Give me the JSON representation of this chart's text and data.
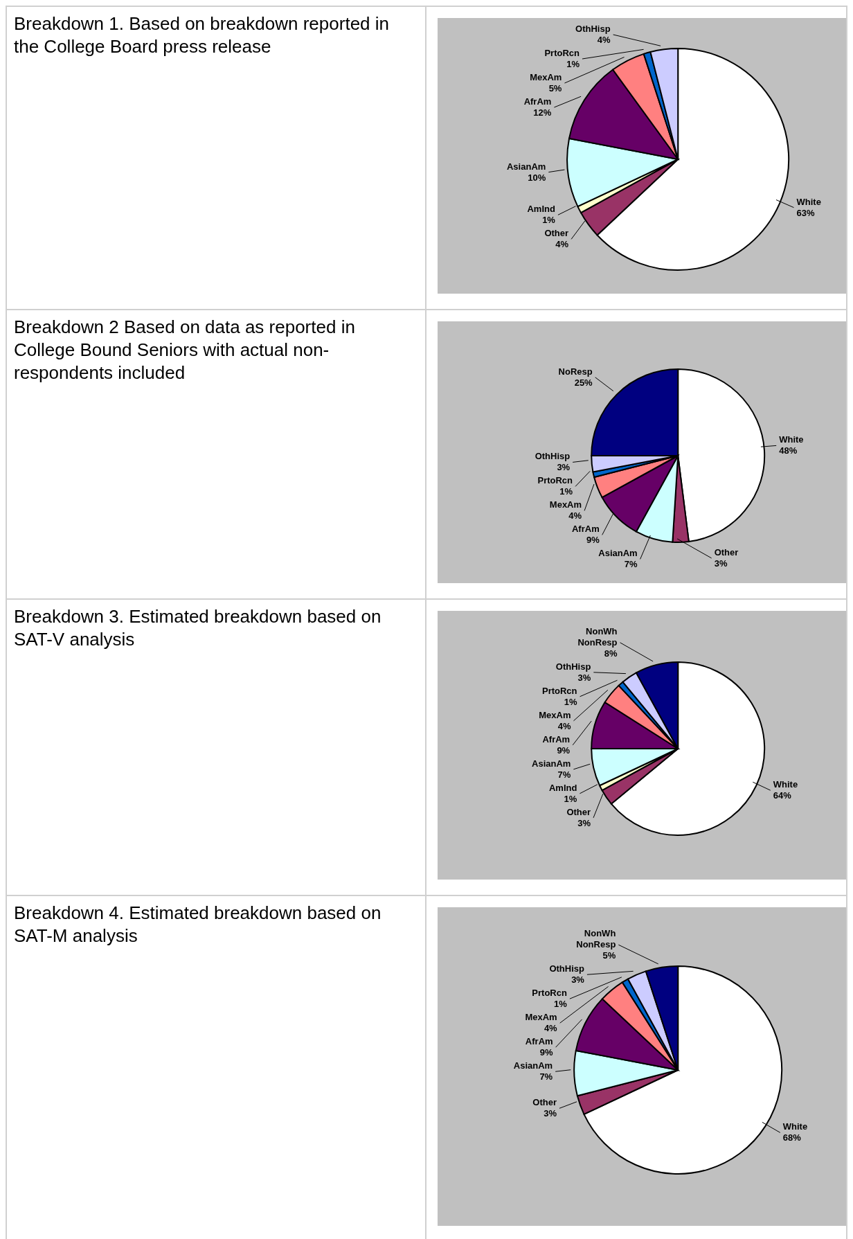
{
  "chart_data": [
    {
      "type": "pie",
      "title": "Breakdown 1. Based on breakdown reported in the College Board press release",
      "categories": [
        "White",
        "Other",
        "AmInd",
        "AsianAm",
        "AfrAm",
        "MexAm",
        "PrtoRcn",
        "OthHisp"
      ],
      "values": [
        63,
        4,
        1,
        10,
        12,
        5,
        1,
        4
      ],
      "value_labels": [
        "63%",
        "4%",
        "1%",
        "10%",
        "12%",
        "5%",
        "1%",
        "4%"
      ],
      "colors": [
        "#ffffff",
        "#993366",
        "#ffffcc",
        "#ccffff",
        "#660066",
        "#ff8080",
        "#0066cc",
        "#ccccff"
      ],
      "legend": false
    },
    {
      "type": "pie",
      "title": "Breakdown 2 Based on data as reported in College Bound Seniors with actual non-respondents included",
      "categories": [
        "White",
        "Other",
        "AsianAm",
        "AfrAm",
        "MexAm",
        "PrtoRcn",
        "OthHisp",
        "NoResp"
      ],
      "values": [
        48,
        3,
        7,
        9,
        4,
        1,
        3,
        25
      ],
      "value_labels": [
        "48%",
        "3%",
        "7%",
        "9%",
        "4%",
        "1%",
        "3%",
        "25%"
      ],
      "colors": [
        "#ffffff",
        "#993366",
        "#ccffff",
        "#660066",
        "#ff8080",
        "#0066cc",
        "#ccccff",
        "#000080"
      ],
      "legend": false
    },
    {
      "type": "pie",
      "title": "Breakdown 3. Estimated breakdown based on SAT-V analysis",
      "categories": [
        "White",
        "Other",
        "AmInd",
        "AsianAm",
        "AfrAm",
        "MexAm",
        "PrtoRcn",
        "OthHisp",
        "NonWh NonResp"
      ],
      "values": [
        64,
        3,
        1,
        7,
        9,
        4,
        1,
        3,
        8
      ],
      "value_labels": [
        "64%",
        "3%",
        "1%",
        "7%",
        "9%",
        "4%",
        "1%",
        "3%",
        "8%"
      ],
      "colors": [
        "#ffffff",
        "#993366",
        "#ffffcc",
        "#ccffff",
        "#660066",
        "#ff8080",
        "#0066cc",
        "#ccccff",
        "#000080"
      ],
      "legend": false
    },
    {
      "type": "pie",
      "title": "Breakdown 4. Estimated breakdown based on SAT-M analysis",
      "categories": [
        "White",
        "Other",
        "AsianAm",
        "AfrAm",
        "MexAm",
        "PrtoRcn",
        "OthHisp",
        "NonWh NonResp"
      ],
      "values": [
        68,
        3,
        7,
        9,
        4,
        1,
        3,
        5
      ],
      "value_labels": [
        "68%",
        "3%",
        "7%",
        "9%",
        "4%",
        "1%",
        "3%",
        "5%"
      ],
      "colors": [
        "#ffffff",
        "#993366",
        "#ccffff",
        "#660066",
        "#ff8080",
        "#0066cc",
        "#ccccff",
        "#000080"
      ],
      "legend": false
    }
  ]
}
